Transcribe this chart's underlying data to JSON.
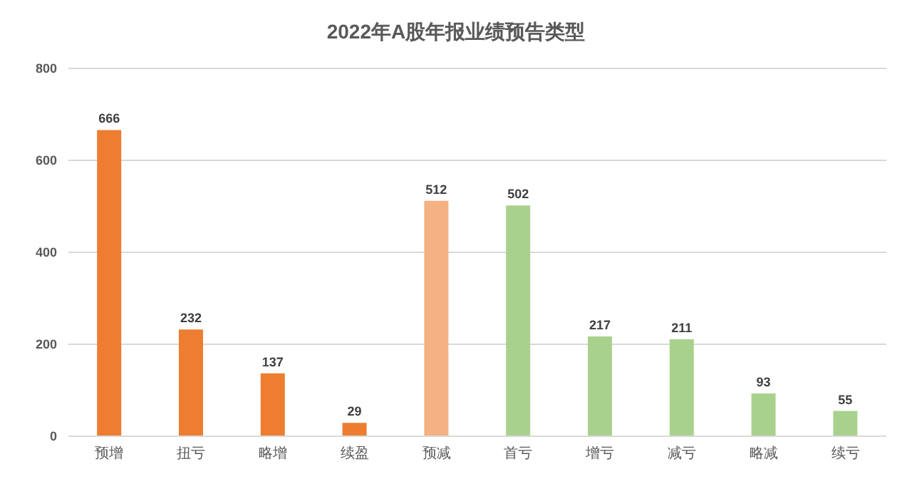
{
  "chart_data": {
    "type": "bar",
    "title": "2022年A股年报业绩预告类型",
    "categories": [
      "预增",
      "扭亏",
      "略增",
      "续盈",
      "预减",
      "首亏",
      "增亏",
      "减亏",
      "略减",
      "续亏"
    ],
    "values": [
      666,
      232,
      137,
      29,
      512,
      502,
      217,
      211,
      93,
      55
    ],
    "colors": [
      "#ed7d31",
      "#ed7d31",
      "#ed7d31",
      "#ed7d31",
      "#f4b183",
      "#a9d18e",
      "#a9d18e",
      "#a9d18e",
      "#a9d18e",
      "#a9d18e"
    ],
    "data_labels": true,
    "ylim": [
      0,
      800
    ],
    "yticks": [
      0,
      200,
      400,
      600,
      800
    ],
    "grid": "y"
  }
}
